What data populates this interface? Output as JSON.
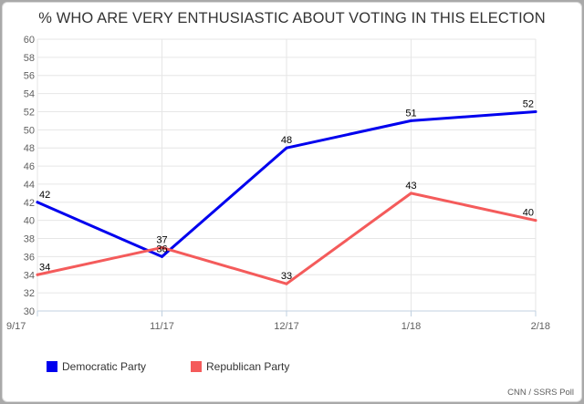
{
  "chart_data": {
    "type": "line",
    "title": "% WHO ARE VERY ENTHUSIASTIC ABOUT VOTING IN THIS ELECTION",
    "categories": [
      "9/17",
      "11/17",
      "12/17",
      "1/18",
      "2/18"
    ],
    "series": [
      {
        "name": "Democratic Party",
        "color": "#0000ee",
        "values": [
          42,
          36,
          48,
          51,
          52
        ]
      },
      {
        "name": "Republican Party",
        "color": "#f45b5b",
        "values": [
          34,
          37,
          33,
          43,
          40
        ]
      }
    ],
    "ylim": [
      30,
      60
    ],
    "yticks": [
      30,
      32,
      34,
      36,
      38,
      40,
      42,
      44,
      46,
      48,
      50,
      52,
      54,
      56,
      58,
      60
    ],
    "grid": true,
    "legend": "bottom-left",
    "credit": "CNN / SSRS Poll"
  }
}
